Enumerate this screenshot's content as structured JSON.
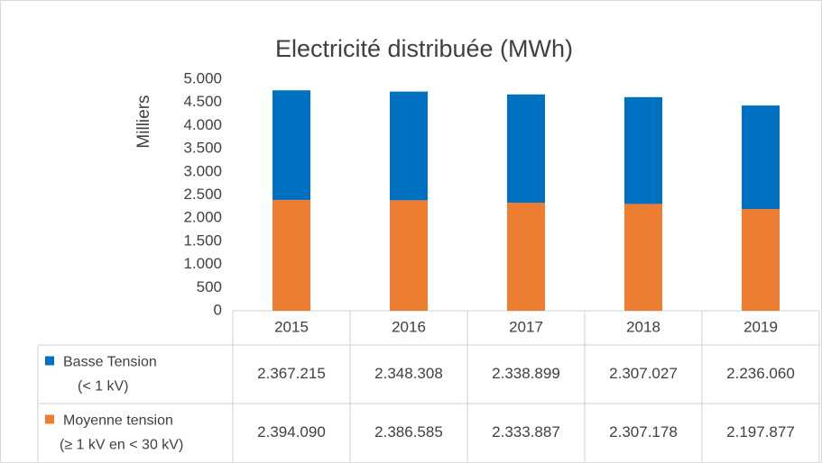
{
  "chart_data": {
    "type": "bar",
    "title": "Electricité distribuée (MWh)",
    "ylabel": "Milliers",
    "categories": [
      "2015",
      "2016",
      "2017",
      "2018",
      "2019"
    ],
    "series": [
      {
        "name": "Basse Tension (< 1 kV)",
        "color": "#0070c0",
        "values": [
          2367.215,
          2348.308,
          2338.899,
          2307.027,
          2236.06
        ],
        "value_labels": [
          "2.367.215",
          "2.348.308",
          "2.338.899",
          "2.307.027",
          "2.236.060"
        ]
      },
      {
        "name": "Moyenne tension (≥ 1 kV en < 30 kV)",
        "color": "#ed7d31",
        "values": [
          2394.09,
          2386.585,
          2333.887,
          2307.178,
          2197.877
        ],
        "value_labels": [
          "2.394.090",
          "2.386.585",
          "2.333.887",
          "2.307.178",
          "2.197.877"
        ]
      }
    ],
    "stacked": true,
    "ylim": [
      0,
      5000
    ],
    "yticks": [
      0,
      {
        "value": 500,
        "label": "500"
      },
      {
        "value": 1000,
        "label": "1.000"
      },
      {
        "value": 1500,
        "label": "1.500"
      },
      {
        "value": 2000,
        "label": "2.000"
      },
      {
        "value": 2500,
        "label": "2.500"
      },
      {
        "value": 3000,
        "label": "3.000"
      },
      {
        "value": 3500,
        "label": "3.500"
      },
      {
        "value": 4000,
        "label": "4.000"
      },
      {
        "value": 4500,
        "label": "4.500"
      },
      {
        "value": 5000,
        "label": "5.000"
      }
    ]
  }
}
